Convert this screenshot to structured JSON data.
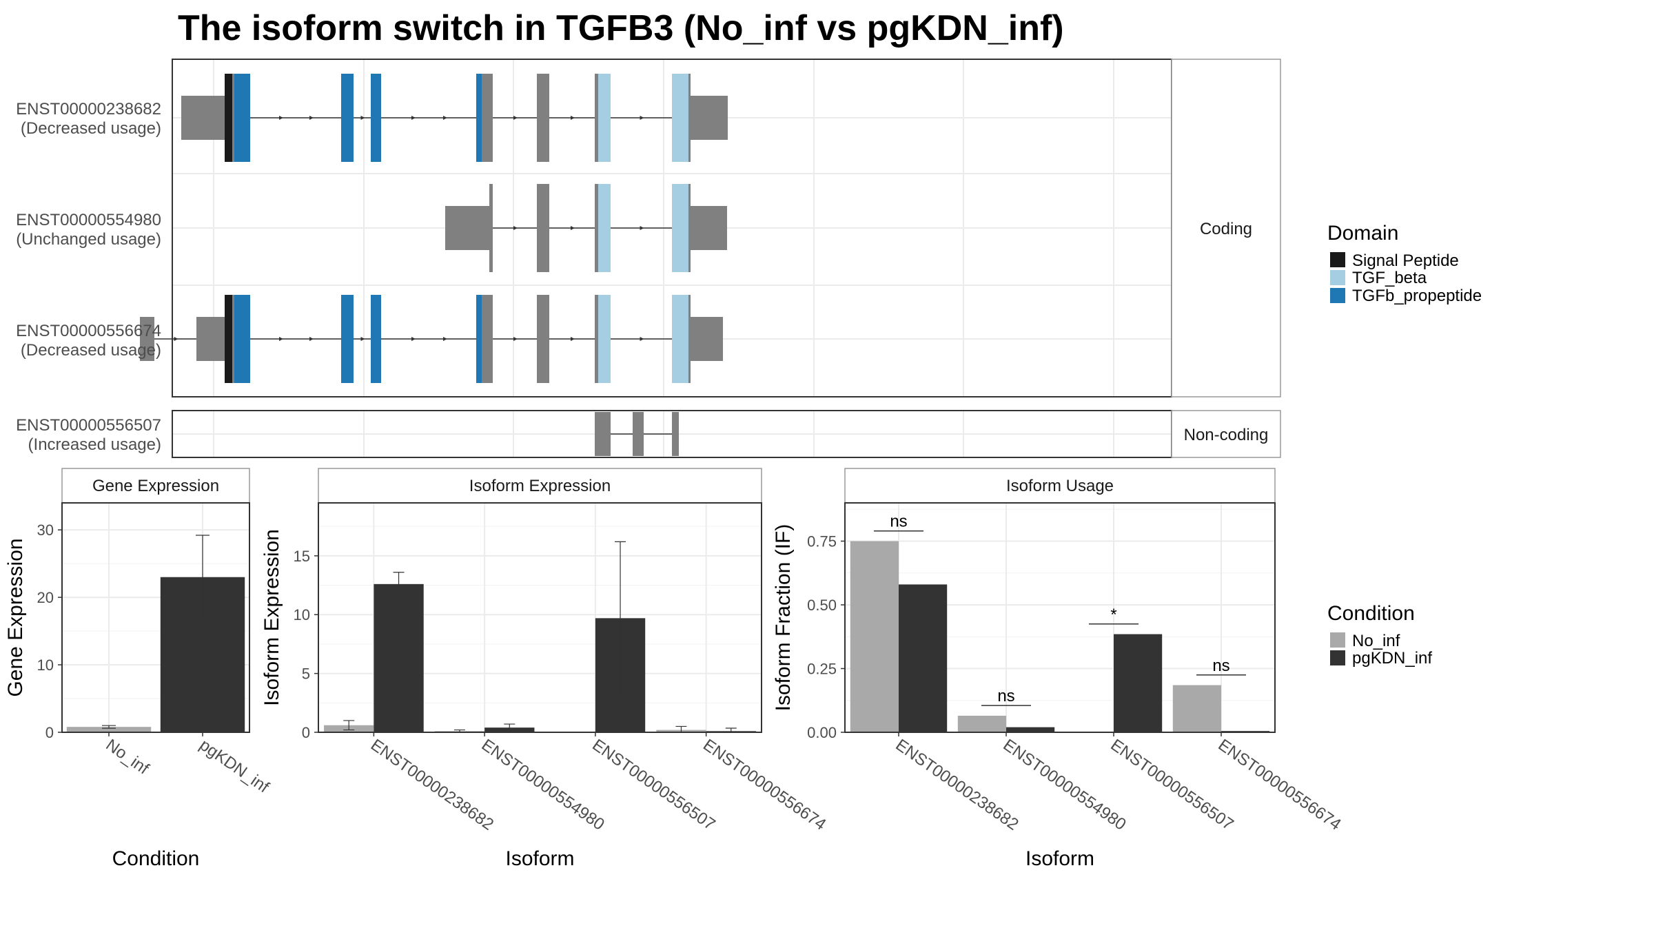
{
  "title": "The isoform switch in TGFB3 (No_inf vs pgKDN_inf)",
  "colors": {
    "signal_peptide": "#1a1a1a",
    "tgf_beta": "#a6cee3",
    "tgfb_propeptide": "#1f78b4",
    "exon_gray": "#808080",
    "no_inf": "#a9a9a9",
    "pgkdn_inf": "#333333",
    "grid": "#ebebeb"
  },
  "structure": {
    "coding_label": "Coding",
    "noncoding_label": "Non-coding",
    "isoforms": [
      {
        "id": "ENST00000238682",
        "usage": "(Decreased usage)",
        "group": "coding",
        "segments": [
          {
            "s": 263,
            "e": 326,
            "type": "utr"
          },
          {
            "s": 326,
            "e": 337,
            "type": "cds",
            "domain": "signal_peptide"
          },
          {
            "s": 337,
            "e": 340,
            "type": "cds"
          },
          {
            "s": 340,
            "e": 363,
            "type": "cds",
            "domain": "tgfb_propeptide"
          },
          {
            "s": 495,
            "e": 513,
            "type": "cds",
            "domain": "tgfb_propeptide"
          },
          {
            "s": 538,
            "e": 553,
            "type": "cds",
            "domain": "tgfb_propeptide"
          },
          {
            "s": 691,
            "e": 699,
            "type": "cds",
            "domain": "tgfb_propeptide"
          },
          {
            "s": 699,
            "e": 715,
            "type": "cds"
          },
          {
            "s": 779,
            "e": 797,
            "type": "cds"
          },
          {
            "s": 863,
            "e": 868,
            "type": "cds"
          },
          {
            "s": 868,
            "e": 886,
            "type": "cds",
            "domain": "tgf_beta"
          },
          {
            "s": 975,
            "e": 999,
            "type": "cds",
            "domain": "tgf_beta"
          },
          {
            "s": 999,
            "e": 1002,
            "type": "cds"
          },
          {
            "s": 1002,
            "e": 1056,
            "type": "utr"
          }
        ]
      },
      {
        "id": "ENST00000554980",
        "usage": "(Unchanged usage)",
        "group": "coding",
        "segments": [
          {
            "s": 646,
            "e": 710,
            "type": "utr"
          },
          {
            "s": 710,
            "e": 715,
            "type": "cds"
          },
          {
            "s": 779,
            "e": 797,
            "type": "cds"
          },
          {
            "s": 863,
            "e": 868,
            "type": "cds"
          },
          {
            "s": 868,
            "e": 886,
            "type": "cds",
            "domain": "tgf_beta"
          },
          {
            "s": 975,
            "e": 999,
            "type": "cds",
            "domain": "tgf_beta"
          },
          {
            "s": 999,
            "e": 1002,
            "type": "cds"
          },
          {
            "s": 1002,
            "e": 1055,
            "type": "utr"
          }
        ]
      },
      {
        "id": "ENST00000556674",
        "usage": "(Decreased usage)",
        "group": "coding",
        "segments": [
          {
            "s": 203,
            "e": 224,
            "type": "utr"
          },
          {
            "s": 285,
            "e": 326,
            "type": "utr"
          },
          {
            "s": 326,
            "e": 337,
            "type": "cds",
            "domain": "signal_peptide"
          },
          {
            "s": 337,
            "e": 340,
            "type": "cds"
          },
          {
            "s": 340,
            "e": 363,
            "type": "cds",
            "domain": "tgfb_propeptide"
          },
          {
            "s": 495,
            "e": 513,
            "type": "cds",
            "domain": "tgfb_propeptide"
          },
          {
            "s": 538,
            "e": 553,
            "type": "cds",
            "domain": "tgfb_propeptide"
          },
          {
            "s": 691,
            "e": 699,
            "type": "cds",
            "domain": "tgfb_propeptide"
          },
          {
            "s": 699,
            "e": 715,
            "type": "cds"
          },
          {
            "s": 779,
            "e": 797,
            "type": "cds"
          },
          {
            "s": 863,
            "e": 868,
            "type": "cds"
          },
          {
            "s": 868,
            "e": 886,
            "type": "cds",
            "domain": "tgf_beta"
          },
          {
            "s": 975,
            "e": 999,
            "type": "cds",
            "domain": "tgf_beta"
          },
          {
            "s": 999,
            "e": 1002,
            "type": "cds"
          },
          {
            "s": 1002,
            "e": 1049,
            "type": "utr"
          }
        ]
      },
      {
        "id": "ENST00000556507",
        "usage": "(Increased usage)",
        "group": "noncoding",
        "segments": [
          {
            "s": 863,
            "e": 886,
            "type": "nc"
          },
          {
            "s": 918,
            "e": 934,
            "type": "nc"
          },
          {
            "s": 975,
            "e": 985,
            "type": "nc"
          }
        ]
      }
    ]
  },
  "legends": {
    "domain": {
      "title": "Domain",
      "items": [
        {
          "label": "Signal Peptide",
          "key": "signal_peptide"
        },
        {
          "label": "TGF_beta",
          "key": "tgf_beta"
        },
        {
          "label": "TGFb_propeptide",
          "key": "tgfb_propeptide"
        }
      ]
    },
    "condition": {
      "title": "Condition",
      "items": [
        {
          "label": "No_inf",
          "key": "no_inf"
        },
        {
          "label": "pgKDN_inf",
          "key": "pgkdn_inf"
        }
      ]
    }
  },
  "chart_data": [
    {
      "type": "bar",
      "title": "Gene Expression",
      "xlabel": "Condition",
      "ylabel": "Gene Expression",
      "ylim": [
        0,
        34
      ],
      "yticks": [
        0,
        10,
        20,
        30
      ],
      "categories": [
        "No_inf",
        "pgKDN_inf"
      ],
      "values": [
        0.8,
        23.0
      ],
      "errors": [
        [
          0.6,
          1.0
        ],
        [
          16.8,
          29.2
        ]
      ],
      "colors": [
        "no_inf",
        "pgkdn_inf"
      ]
    },
    {
      "type": "bar",
      "title": "Isoform Expression",
      "xlabel": "Isoform",
      "ylabel": "Isoform Expression",
      "ylim": [
        0,
        19.5
      ],
      "yticks": [
        0,
        5,
        10,
        15
      ],
      "categories": [
        "ENST00000238682",
        "ENST00000554980",
        "ENST00000556507",
        "ENST00000556674"
      ],
      "series": [
        {
          "name": "No_inf",
          "key": "no_inf",
          "values": [
            0.6,
            0.1,
            0.0,
            0.2
          ],
          "errors": [
            [
              0.2,
              1.0
            ],
            [
              0.0,
              0.2
            ],
            [
              0.0,
              0.0
            ],
            [
              0.0,
              0.5
            ]
          ]
        },
        {
          "name": "pgKDN_inf",
          "key": "pgkdn_inf",
          "values": [
            12.6,
            0.4,
            9.7,
            0.1
          ],
          "errors": [
            [
              11.6,
              13.6
            ],
            [
              0.2,
              0.7
            ],
            [
              3.1,
              16.2
            ],
            [
              0.0,
              0.35
            ]
          ]
        }
      ]
    },
    {
      "type": "bar",
      "title": "Isoform Usage",
      "xlabel": "Isoform",
      "ylabel": "Isoform Fraction (IF)",
      "ylim": [
        0,
        0.9
      ],
      "yticks": [
        0,
        0.25,
        0.5,
        0.75
      ],
      "yticklabels": [
        "0.00",
        "0.25",
        "0.50",
        "0.75"
      ],
      "categories": [
        "ENST00000238682",
        "ENST00000554980",
        "ENST00000556507",
        "ENST00000556674"
      ],
      "series": [
        {
          "name": "No_inf",
          "key": "no_inf",
          "values": [
            0.75,
            0.065,
            0.0,
            0.185
          ]
        },
        {
          "name": "pgKDN_inf",
          "key": "pgkdn_inf",
          "values": [
            0.58,
            0.02,
            0.385,
            0.005
          ]
        }
      ],
      "significance": [
        {
          "label": "ns",
          "y": 0.79
        },
        {
          "label": "ns",
          "y": 0.105
        },
        {
          "label": "*",
          "y": 0.425
        },
        {
          "label": "ns",
          "y": 0.225
        }
      ]
    }
  ]
}
